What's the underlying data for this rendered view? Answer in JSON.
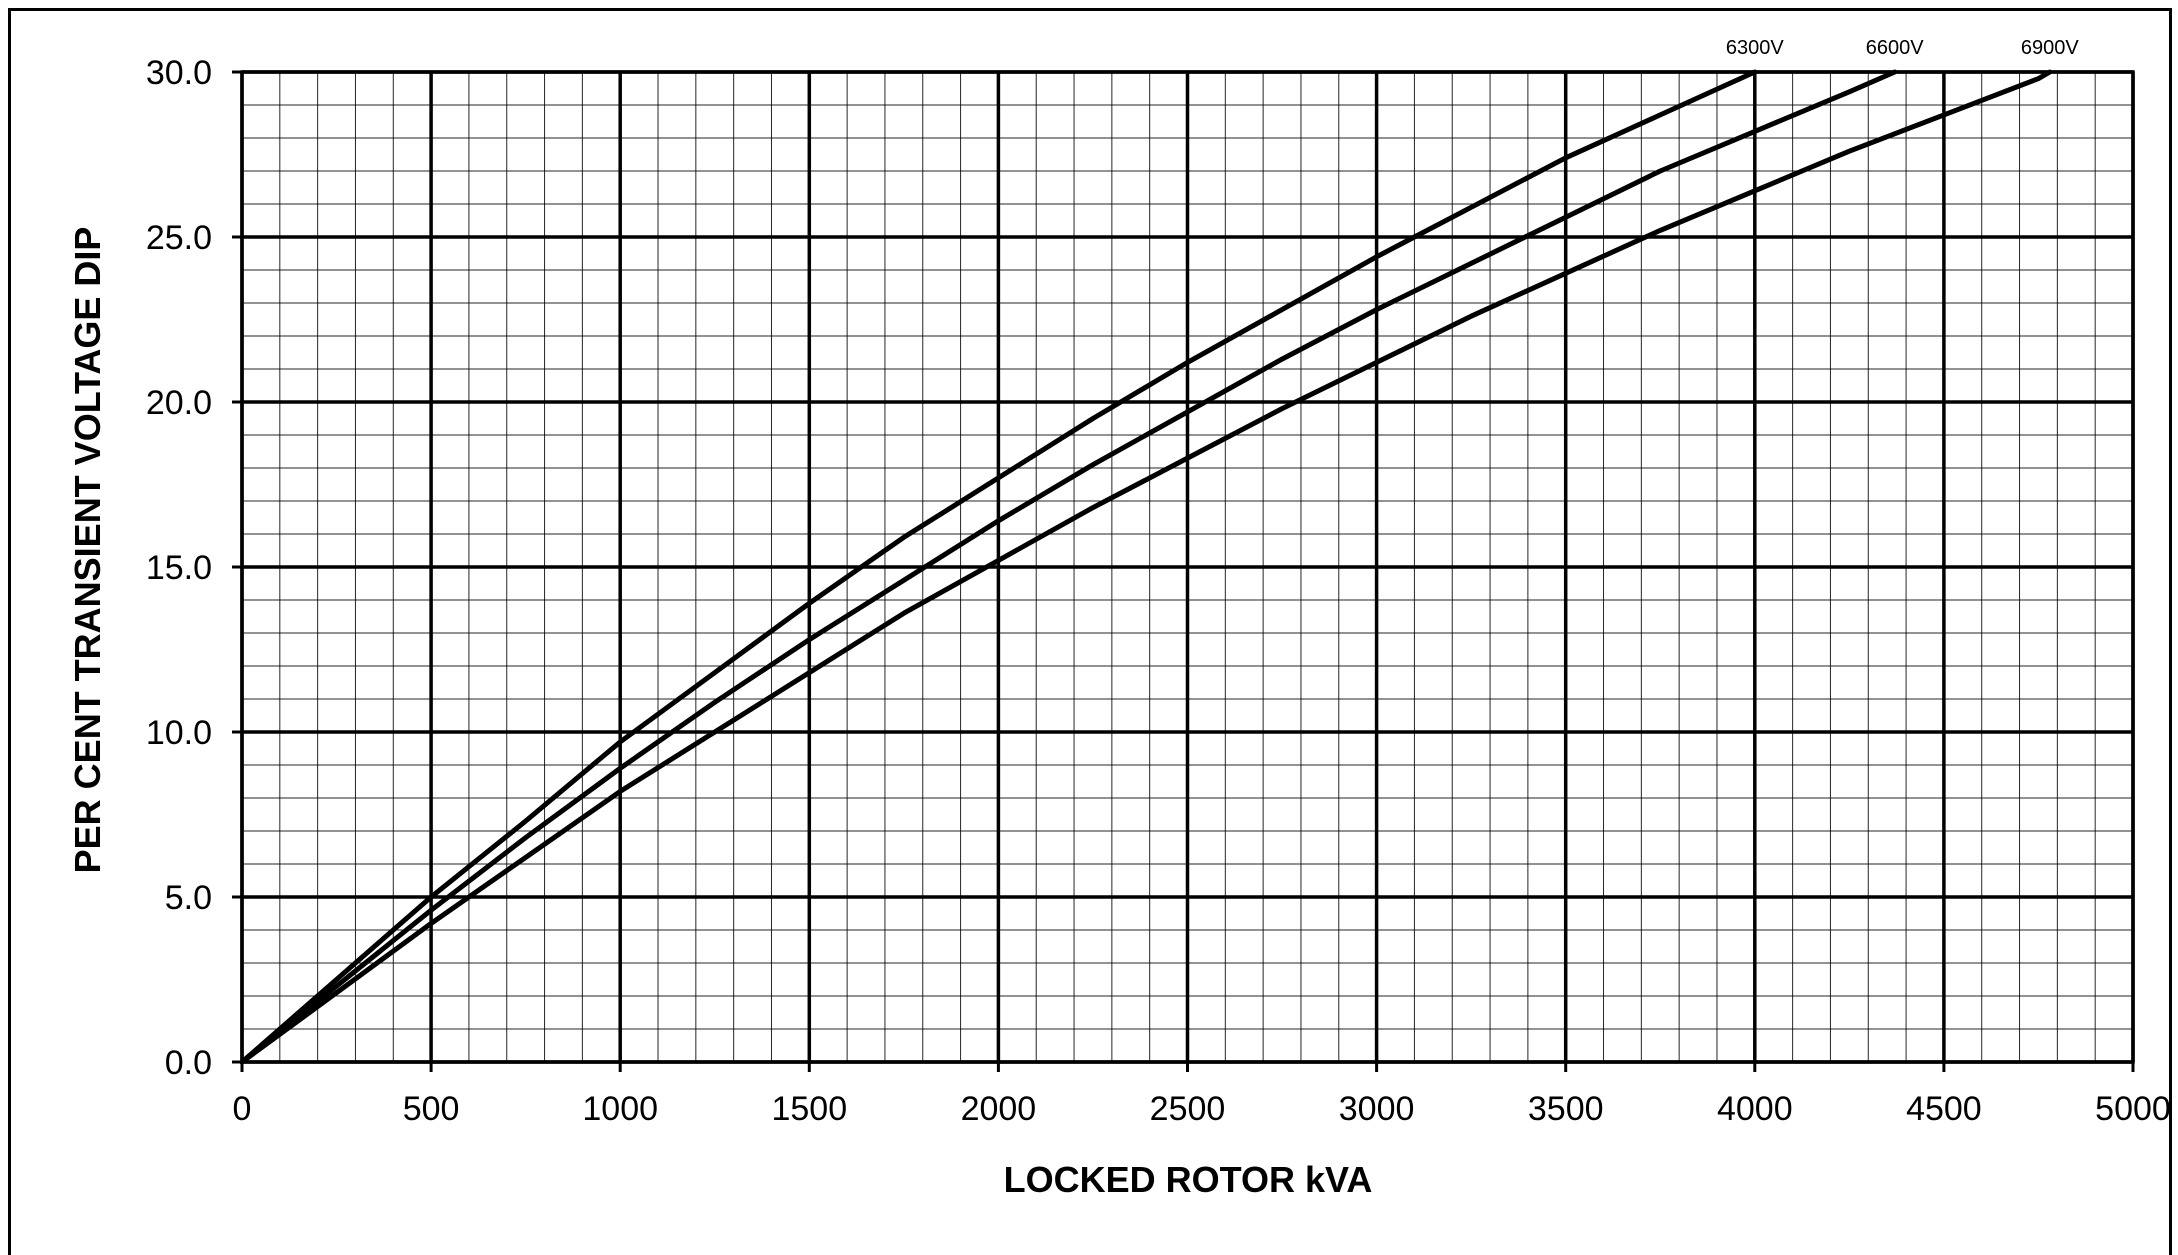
{
  "chart_data": {
    "type": "line",
    "xlabel": "LOCKED ROTOR kVA",
    "ylabel": "PER CENT TRANSIENT VOLTAGE DIP",
    "xlim": [
      0,
      5000
    ],
    "ylim": [
      0,
      30
    ],
    "x_ticks": [
      "0",
      "500",
      "1000",
      "1500",
      "2000",
      "2500",
      "3000",
      "3500",
      "4000",
      "4500",
      "5000"
    ],
    "y_ticks": [
      "0.0",
      "5.0",
      "10.0",
      "15.0",
      "20.0",
      "25.0",
      "30.0"
    ],
    "x_tick_values": [
      0,
      500,
      1000,
      1500,
      2000,
      2500,
      3000,
      3500,
      4000,
      4500,
      5000
    ],
    "y_tick_values": [
      0,
      5,
      10,
      15,
      20,
      25,
      30
    ],
    "minor_x_step": 100,
    "minor_y_step": 1,
    "grid": true,
    "series": [
      {
        "name": "6300V",
        "x": [
          0,
          500,
          750,
          1000,
          1250,
          1500,
          1750,
          2000,
          2250,
          2500,
          2750,
          3000,
          3250,
          3500,
          3750,
          4000
        ],
        "y": [
          0,
          5.0,
          7.3,
          9.7,
          11.8,
          13.9,
          15.9,
          17.7,
          19.5,
          21.2,
          22.8,
          24.4,
          25.9,
          27.4,
          28.7,
          30.0
        ]
      },
      {
        "name": "6600V",
        "x": [
          0,
          500,
          750,
          1000,
          1250,
          1500,
          1750,
          2000,
          2250,
          2500,
          2750,
          3000,
          3250,
          3500,
          3750,
          4000,
          4250,
          4370
        ],
        "y": [
          0,
          4.6,
          6.8,
          8.9,
          10.9,
          12.8,
          14.6,
          16.4,
          18.1,
          19.7,
          21.3,
          22.8,
          24.2,
          25.6,
          27.0,
          28.2,
          29.4,
          30.0
        ]
      },
      {
        "name": "6900V",
        "x": [
          0,
          500,
          750,
          1000,
          1250,
          1500,
          1750,
          2000,
          2250,
          2500,
          2750,
          3000,
          3250,
          3500,
          3750,
          4000,
          4250,
          4500,
          4750,
          4780
        ],
        "y": [
          0,
          4.2,
          6.2,
          8.2,
          10.0,
          11.8,
          13.6,
          15.2,
          16.8,
          18.3,
          19.8,
          21.2,
          22.6,
          23.9,
          25.2,
          26.4,
          27.6,
          28.7,
          29.8,
          30.0
        ]
      }
    ]
  },
  "colors": {
    "line": "#000000",
    "grid": "#000000",
    "background": "#ffffff"
  }
}
